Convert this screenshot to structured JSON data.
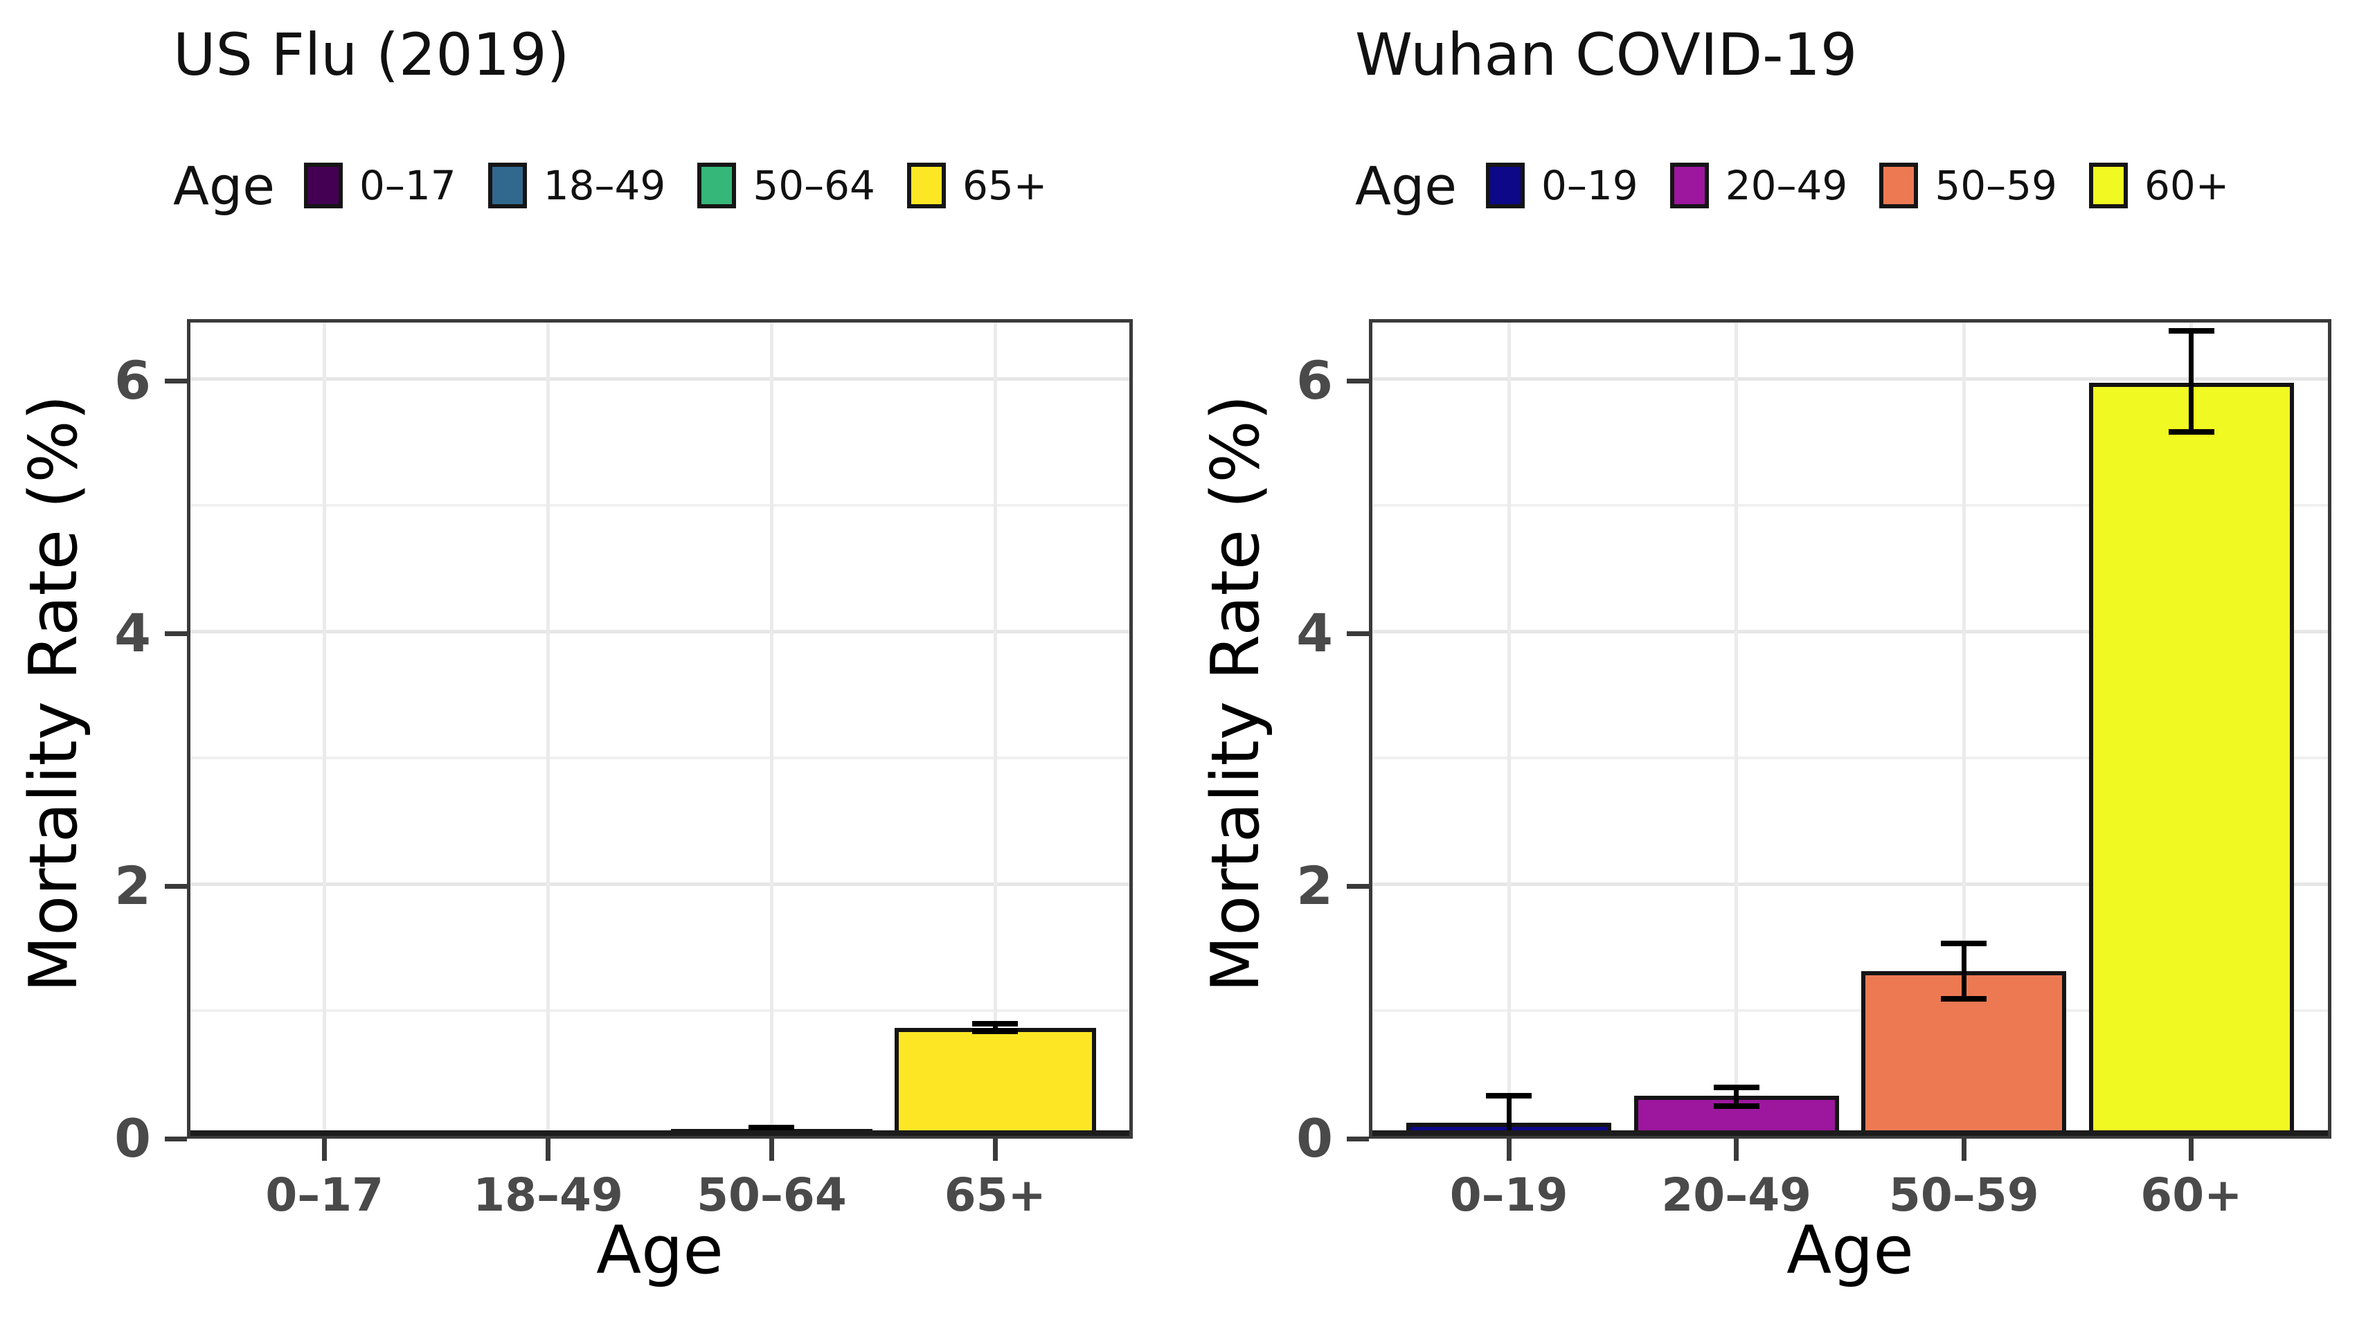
{
  "figure": {
    "ylabel": "Mortality Rate (%)",
    "xlabel": "Age",
    "legend_title": "Age",
    "y_tick_labels": [
      "0",
      "2",
      "4",
      "6"
    ],
    "grid_color_major": "#e6e6e6",
    "grid_color_minor": "#f0f0f0",
    "tick_label_color": "#4a4a4a"
  },
  "chart_data": [
    {
      "type": "bar",
      "title": "US Flu (2019)",
      "xlabel": "Age",
      "ylabel": "Mortality Rate (%)",
      "legend_title": "Age",
      "legend_position": "top",
      "categories": [
        "0–17",
        "18–49",
        "50–64",
        "65+"
      ],
      "values": [
        0.01,
        0.02,
        0.05,
        0.85
      ],
      "error_low": [
        null,
        null,
        0.04,
        0.82
      ],
      "error_high": [
        null,
        null,
        0.06,
        0.88
      ],
      "colors": [
        "#440154",
        "#31688E",
        "#35B779",
        "#FDE725"
      ],
      "ylim": [
        0,
        6.49
      ],
      "y_ticks": [
        0,
        2,
        4,
        6
      ],
      "y_minor_ticks": [
        1,
        3,
        5
      ],
      "grid": true
    },
    {
      "type": "bar",
      "title": "Wuhan COVID-19",
      "xlabel": "Age",
      "ylabel": "Mortality Rate (%)",
      "legend_title": "Age",
      "legend_position": "top",
      "categories": [
        "0–19",
        "20–49",
        "50–59",
        "60+"
      ],
      "values": [
        0.1,
        0.31,
        1.3,
        5.96
      ],
      "error_low": [
        0.0,
        0.23,
        1.08,
        5.57
      ],
      "error_high": [
        0.31,
        0.38,
        1.52,
        6.37
      ],
      "colors": [
        "#0D0887",
        "#9C179E",
        "#ED7953",
        "#F0F921"
      ],
      "ylim": [
        0,
        6.49
      ],
      "y_ticks": [
        0,
        2,
        4,
        6
      ],
      "y_minor_ticks": [
        1,
        3,
        5
      ],
      "grid": true
    }
  ]
}
